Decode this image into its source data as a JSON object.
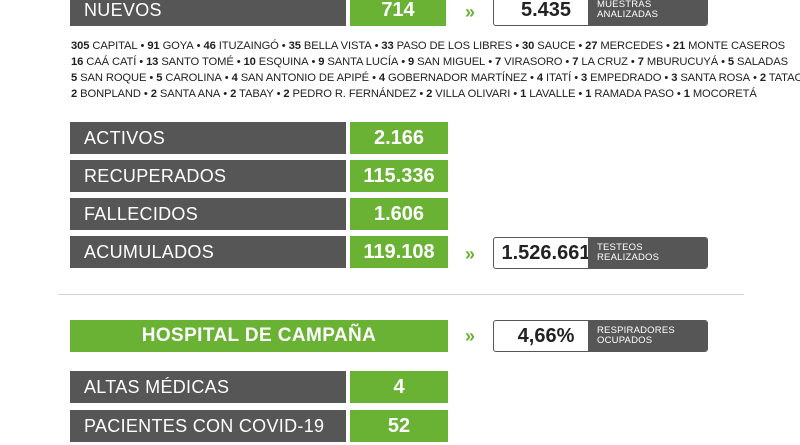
{
  "top": {
    "label": "NUEVOS",
    "value": "714",
    "chevron": "»",
    "tested_value": "5.435",
    "tested_caption_1": "MUESTRAS",
    "tested_caption_2": "ANALIZADAS"
  },
  "cities": [
    [
      {
        "n": "305",
        "c": "CAPITAL"
      },
      {
        "n": "91",
        "c": "GOYA"
      },
      {
        "n": "46",
        "c": "ITUZAINGÓ"
      },
      {
        "n": "35",
        "c": "BELLA VISTA"
      },
      {
        "n": "33",
        "c": "PASO DE LOS LIBRES"
      },
      {
        "n": "30",
        "c": "SAUCE"
      },
      {
        "n": "27",
        "c": "MERCEDES"
      },
      {
        "n": "21",
        "c": "MONTE CASEROS"
      }
    ],
    [
      {
        "n": "16",
        "c": "CAÁ CATÍ"
      },
      {
        "n": "13",
        "c": "SANTO TOMÉ"
      },
      {
        "n": "10",
        "c": "ESQUINA"
      },
      {
        "n": "9",
        "c": "SANTA LUCÍA"
      },
      {
        "n": "9",
        "c": "SAN MIGUEL"
      },
      {
        "n": "7",
        "c": "VIRASORO"
      },
      {
        "n": "7",
        "c": "LA CRUZ"
      },
      {
        "n": "7",
        "c": "MBURUCUYÁ"
      },
      {
        "n": "5",
        "c": "SALADAS"
      }
    ],
    [
      {
        "n": "5",
        "c": "SAN ROQUE"
      },
      {
        "n": "5",
        "c": "CAROLINA"
      },
      {
        "n": "4",
        "c": "SAN ANTONIO DE APIPÉ"
      },
      {
        "n": "4",
        "c": "GOBERNADOR MARTÍNEZ"
      },
      {
        "n": "4",
        "c": "ITATÍ"
      },
      {
        "n": "3",
        "c": "EMPEDRADO"
      },
      {
        "n": "3",
        "c": "SANTA ROSA"
      },
      {
        "n": "2",
        "c": "TATACUÁ"
      }
    ],
    [
      {
        "n": "2",
        "c": "BONPLAND"
      },
      {
        "n": "2",
        "c": "SANTA ANA"
      },
      {
        "n": "2",
        "c": "TABAY"
      },
      {
        "n": "2",
        "c": "PEDRO R. FERNÁNDEZ"
      },
      {
        "n": "2",
        "c": "VILLA OLIVARI"
      },
      {
        "n": "1",
        "c": "LAVALLE"
      },
      {
        "n": "1",
        "c": "RAMADA PASO"
      },
      {
        "n": "1",
        "c": "MOCORETÁ"
      }
    ]
  ],
  "separator": "•",
  "stats": [
    {
      "label": "ACTIVOS",
      "value": "2.166"
    },
    {
      "label": "RECUPERADOS",
      "value": "115.336"
    },
    {
      "label": "FALLECIDOS",
      "value": "1.606"
    },
    {
      "label": "ACUMULADOS",
      "value": "119.108"
    }
  ],
  "tests": {
    "chevron": "»",
    "value": "1.526.661",
    "caption_1": "TESTEOS",
    "caption_2": "REALIZADOS"
  },
  "hospital": {
    "title": "HOSPITAL DE CAMPAÑA",
    "chevron": "»",
    "resp_value": "4,66%",
    "resp_caption_1": "RESPIRADORES",
    "resp_caption_2": "OCUPADOS",
    "rows": [
      {
        "label": "ALTAS MÉDICAS",
        "value": "4"
      },
      {
        "label": "PACIENTES CON COVID-19",
        "value": "52"
      }
    ]
  },
  "colors": {
    "green": "#69b233",
    "gray": "#575656"
  }
}
